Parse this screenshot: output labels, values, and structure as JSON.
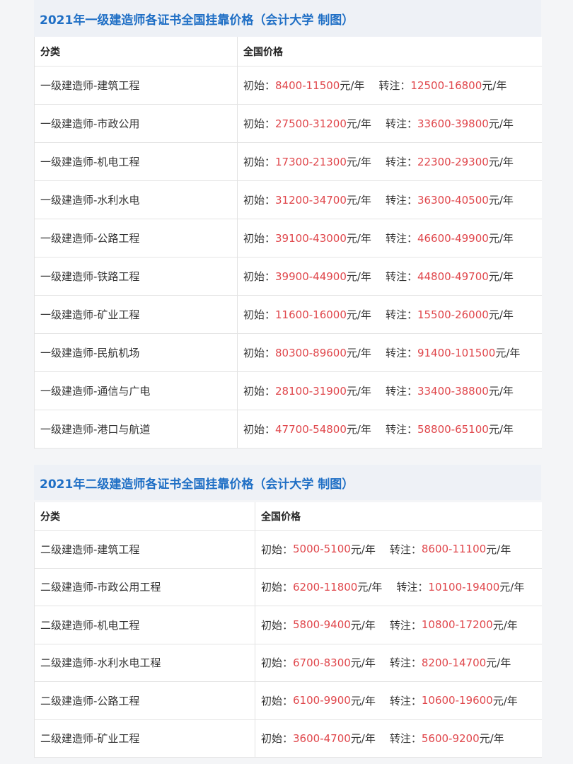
{
  "sections": [
    {
      "title": "2021年一级建造师各证书全国挂靠价格（会计大学 制图）",
      "headers": [
        "分类",
        "全国价格"
      ],
      "rows": [
        {
          "category": "一级建造师-建筑工程",
          "initial": "8400-11500",
          "transfer": "12500-16800"
        },
        {
          "category": "一级建造师-市政公用",
          "initial": "27500-31200",
          "transfer": "33600-39800"
        },
        {
          "category": "一级建造师-机电工程",
          "initial": "17300-21300",
          "transfer": "22300-29300"
        },
        {
          "category": "一级建造师-水利水电",
          "initial": "31200-34700",
          "transfer": "36300-40500"
        },
        {
          "category": "一级建造师-公路工程",
          "initial": "39100-43000",
          "transfer": "46600-49900"
        },
        {
          "category": "一级建造师-铁路工程",
          "initial": "39900-44900",
          "transfer": "44800-49700"
        },
        {
          "category": "一级建造师-矿业工程",
          "initial": "11600-16000",
          "transfer": "15500-26000"
        },
        {
          "category": "一级建造师-民航机场",
          "initial": "80300-89600",
          "transfer": "91400-101500"
        },
        {
          "category": "一级建造师-通信与广电",
          "initial": "28100-31900",
          "transfer": "33400-38800"
        },
        {
          "category": "一级建造师-港口与航道",
          "initial": "47700-54800",
          "transfer": "58800-65100"
        }
      ]
    },
    {
      "title": "2021年二级建造师各证书全国挂靠价格（会计大学 制图）",
      "headers": [
        "分类",
        "全国价格"
      ],
      "rows": [
        {
          "category": "二级建造师-建筑工程",
          "initial": "5000-5100",
          "transfer": "8600-11100"
        },
        {
          "category": "二级建造师-市政公用工程",
          "initial": "6200-11800",
          "transfer": "10100-19400"
        },
        {
          "category": "二级建造师-机电工程",
          "initial": "5800-9400",
          "transfer": "10800-17200"
        },
        {
          "category": "二级建造师-水利水电工程",
          "initial": "6700-8300",
          "transfer": "8200-14700"
        },
        {
          "category": "二级建造师-公路工程",
          "initial": "6100-9900",
          "transfer": "10600-19600"
        },
        {
          "category": "二级建造师-矿业工程",
          "initial": "3600-4700",
          "transfer": "5600-9200"
        }
      ]
    }
  ],
  "labels": {
    "initial": "初始：",
    "transfer": "转注：",
    "unit": "元/年"
  },
  "colors": {
    "title": "#1f6fc5",
    "price": "#e0474c"
  }
}
